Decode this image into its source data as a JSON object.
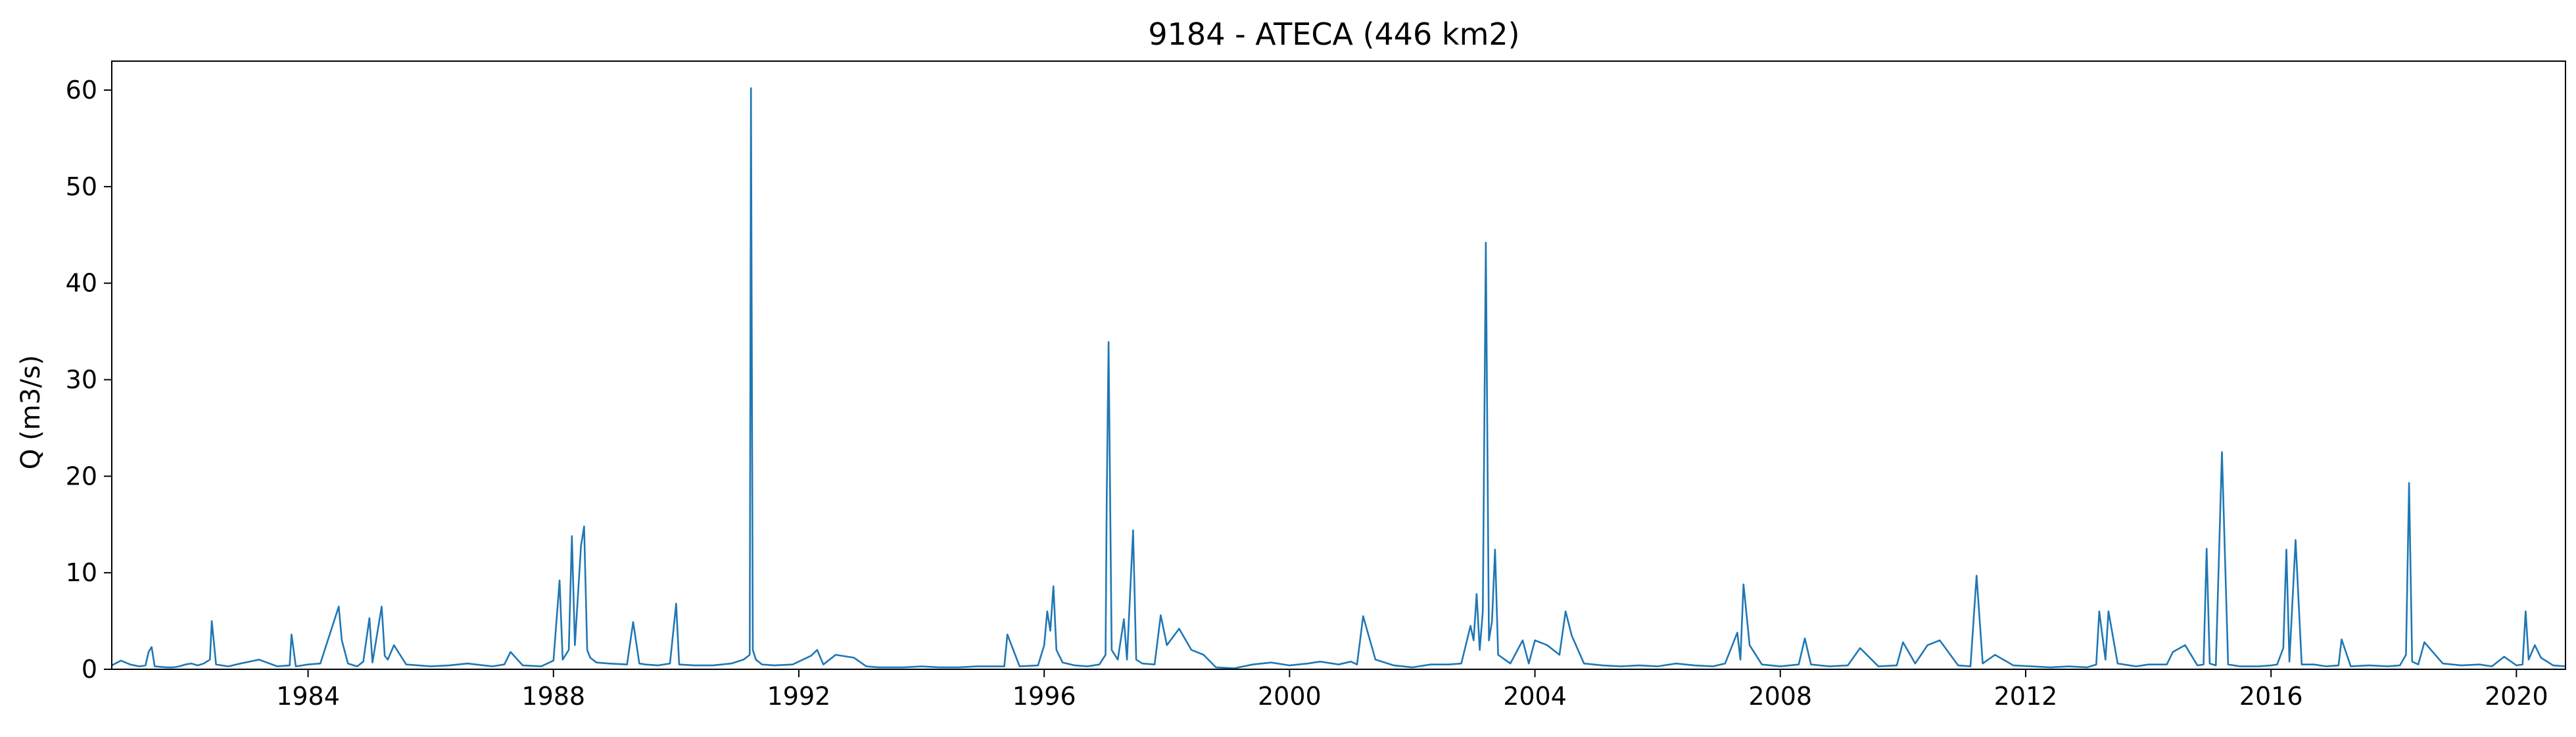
{
  "chart_data": {
    "type": "line",
    "title": "9184 - ATECA (446 km2)",
    "xlabel": "",
    "ylabel": "Q (m3/s)",
    "xlim": [
      1980.8,
      2020.8
    ],
    "ylim": [
      0,
      63
    ],
    "x_ticks": [
      1984,
      1988,
      1992,
      1996,
      2000,
      2004,
      2008,
      2012,
      2016,
      2020
    ],
    "y_ticks": [
      0,
      10,
      20,
      30,
      40,
      50,
      60
    ],
    "grid": false,
    "line_color": "#1f77b4",
    "series": [
      {
        "x": [
          1980.8,
          1980.95,
          1981.1,
          1981.25,
          1981.35,
          1981.4,
          1981.45,
          1981.5,
          1981.7,
          1981.8,
          1981.9,
          1982.0,
          1982.1,
          1982.2,
          1982.3,
          1982.4,
          1982.43,
          1982.5,
          1982.7,
          1982.9,
          1983.2,
          1983.5,
          1983.7,
          1983.73,
          1983.8,
          1984.0,
          1984.2,
          1984.5,
          1984.55,
          1984.65,
          1984.8,
          1984.9,
          1985.0,
          1985.05,
          1985.2,
          1985.25,
          1985.3,
          1985.4,
          1985.6,
          1985.8,
          1986.0,
          1986.3,
          1986.6,
          1987.0,
          1987.2,
          1987.3,
          1987.5,
          1987.8,
          1988.0,
          1988.1,
          1988.15,
          1988.25,
          1988.3,
          1988.35,
          1988.45,
          1988.5,
          1988.55,
          1988.6,
          1988.7,
          1988.9,
          1989.2,
          1989.3,
          1989.4,
          1989.5,
          1989.7,
          1989.9,
          1990.0,
          1990.05,
          1990.3,
          1990.6,
          1990.9,
          1991.1,
          1991.2,
          1991.22,
          1991.25,
          1991.3,
          1991.4,
          1991.6,
          1991.9,
          1992.2,
          1992.3,
          1992.4,
          1992.6,
          1992.9,
          1993.1,
          1993.3,
          1993.7,
          1994.0,
          1994.3,
          1994.6,
          1994.9,
          1995.2,
          1995.35,
          1995.4,
          1995.6,
          1995.9,
          1996.0,
          1996.05,
          1996.1,
          1996.15,
          1996.2,
          1996.3,
          1996.5,
          1996.7,
          1996.9,
          1997.0,
          1997.02,
          1997.05,
          1997.1,
          1997.2,
          1997.3,
          1997.35,
          1997.45,
          1997.5,
          1997.6,
          1997.8,
          1997.9,
          1998.0,
          1998.2,
          1998.4,
          1998.6,
          1998.8,
          1999.1,
          1999.4,
          1999.7,
          2000.0,
          2000.3,
          2000.5,
          2000.8,
          2001.0,
          2001.1,
          2001.2,
          2001.4,
          2001.7,
          2002.0,
          2002.3,
          2002.6,
          2002.8,
          2002.95,
          2003.0,
          2003.05,
          2003.1,
          2003.15,
          2003.2,
          2003.25,
          2003.3,
          2003.35,
          2003.4,
          2003.6,
          2003.8,
          2003.9,
          2004.0,
          2004.2,
          2004.4,
          2004.5,
          2004.6,
          2004.8,
          2005.1,
          2005.4,
          2005.7,
          2006.0,
          2006.3,
          2006.6,
          2006.9,
          2007.1,
          2007.3,
          2007.35,
          2007.4,
          2007.5,
          2007.7,
          2008.0,
          2008.3,
          2008.4,
          2008.5,
          2008.8,
          2009.1,
          2009.3,
          2009.6,
          2009.9,
          2010.0,
          2010.2,
          2010.4,
          2010.6,
          2010.9,
          2011.1,
          2011.2,
          2011.3,
          2011.5,
          2011.8,
          2012.1,
          2012.4,
          2012.7,
          2013.0,
          2013.15,
          2013.2,
          2013.3,
          2013.35,
          2013.5,
          2013.8,
          2014.0,
          2014.3,
          2014.4,
          2014.6,
          2014.8,
          2014.9,
          2014.95,
          2015.0,
          2015.1,
          2015.2,
          2015.3,
          2015.5,
          2015.8,
          2016.0,
          2016.1,
          2016.2,
          2016.25,
          2016.3,
          2016.4,
          2016.5,
          2016.7,
          2016.9,
          2017.1,
          2017.15,
          2017.3,
          2017.6,
          2017.9,
          2018.1,
          2018.2,
          2018.25,
          2018.3,
          2018.4,
          2018.5,
          2018.8,
          2019.1,
          2019.4,
          2019.6,
          2019.8,
          2020.0,
          2020.1,
          2020.15,
          2020.2,
          2020.3,
          2020.4,
          2020.6,
          2020.8
        ],
        "values": [
          0.4,
          0.9,
          0.5,
          0.3,
          0.4,
          1.8,
          2.3,
          0.3,
          0.2,
          0.2,
          0.3,
          0.5,
          0.6,
          0.4,
          0.6,
          1.0,
          5.0,
          0.5,
          0.3,
          0.6,
          1.0,
          0.3,
          0.4,
          3.6,
          0.3,
          0.5,
          0.6,
          6.5,
          3.0,
          0.6,
          0.3,
          0.8,
          5.3,
          0.7,
          6.5,
          1.4,
          1.0,
          2.5,
          0.5,
          0.4,
          0.3,
          0.4,
          0.6,
          0.3,
          0.5,
          1.8,
          0.4,
          0.3,
          0.9,
          9.2,
          1.0,
          2.0,
          13.8,
          2.5,
          12.8,
          14.8,
          2.0,
          1.2,
          0.7,
          0.6,
          0.5,
          4.9,
          0.6,
          0.5,
          0.4,
          0.6,
          6.8,
          0.5,
          0.4,
          0.4,
          0.6,
          1.0,
          1.5,
          60.2,
          2.0,
          1.0,
          0.5,
          0.4,
          0.5,
          1.4,
          2.0,
          0.5,
          1.5,
          1.2,
          0.3,
          0.2,
          0.2,
          0.3,
          0.2,
          0.2,
          0.3,
          0.3,
          0.3,
          3.6,
          0.3,
          0.4,
          2.5,
          6.0,
          4.0,
          8.6,
          2.0,
          0.7,
          0.4,
          0.3,
          0.5,
          1.5,
          17.8,
          33.9,
          2.0,
          1.0,
          5.2,
          1.0,
          14.4,
          1.0,
          0.6,
          0.5,
          5.6,
          2.5,
          4.2,
          2.0,
          1.5,
          0.2,
          0.1,
          0.5,
          0.7,
          0.4,
          0.6,
          0.8,
          0.5,
          0.8,
          0.5,
          5.5,
          1.0,
          0.4,
          0.2,
          0.5,
          0.5,
          0.6,
          4.5,
          3.0,
          7.8,
          2.0,
          6.0,
          44.2,
          3.0,
          5.0,
          12.4,
          1.5,
          0.6,
          3.0,
          0.6,
          3.0,
          2.5,
          1.5,
          6.0,
          3.5,
          0.6,
          0.4,
          0.3,
          0.4,
          0.3,
          0.6,
          0.4,
          0.3,
          0.6,
          3.8,
          1.0,
          8.8,
          2.5,
          0.5,
          0.3,
          0.5,
          3.2,
          0.5,
          0.3,
          0.4,
          2.2,
          0.3,
          0.4,
          2.8,
          0.6,
          2.5,
          3.0,
          0.4,
          0.3,
          9.7,
          0.6,
          1.5,
          0.4,
          0.3,
          0.2,
          0.3,
          0.2,
          0.5,
          6.0,
          1.0,
          6.0,
          0.6,
          0.3,
          0.5,
          0.5,
          1.8,
          2.5,
          0.4,
          0.5,
          12.5,
          0.6,
          0.4,
          22.5,
          0.5,
          0.3,
          0.3,
          0.4,
          0.5,
          2.2,
          12.4,
          0.8,
          13.4,
          0.5,
          0.5,
          0.3,
          0.4,
          3.1,
          0.3,
          0.4,
          0.3,
          0.4,
          1.5,
          19.3,
          0.8,
          0.5,
          2.8,
          0.6,
          0.4,
          0.5,
          0.3,
          1.3,
          0.4,
          0.5,
          6.0,
          1.0,
          2.5,
          1.2,
          0.4,
          0.3
        ]
      }
    ]
  }
}
